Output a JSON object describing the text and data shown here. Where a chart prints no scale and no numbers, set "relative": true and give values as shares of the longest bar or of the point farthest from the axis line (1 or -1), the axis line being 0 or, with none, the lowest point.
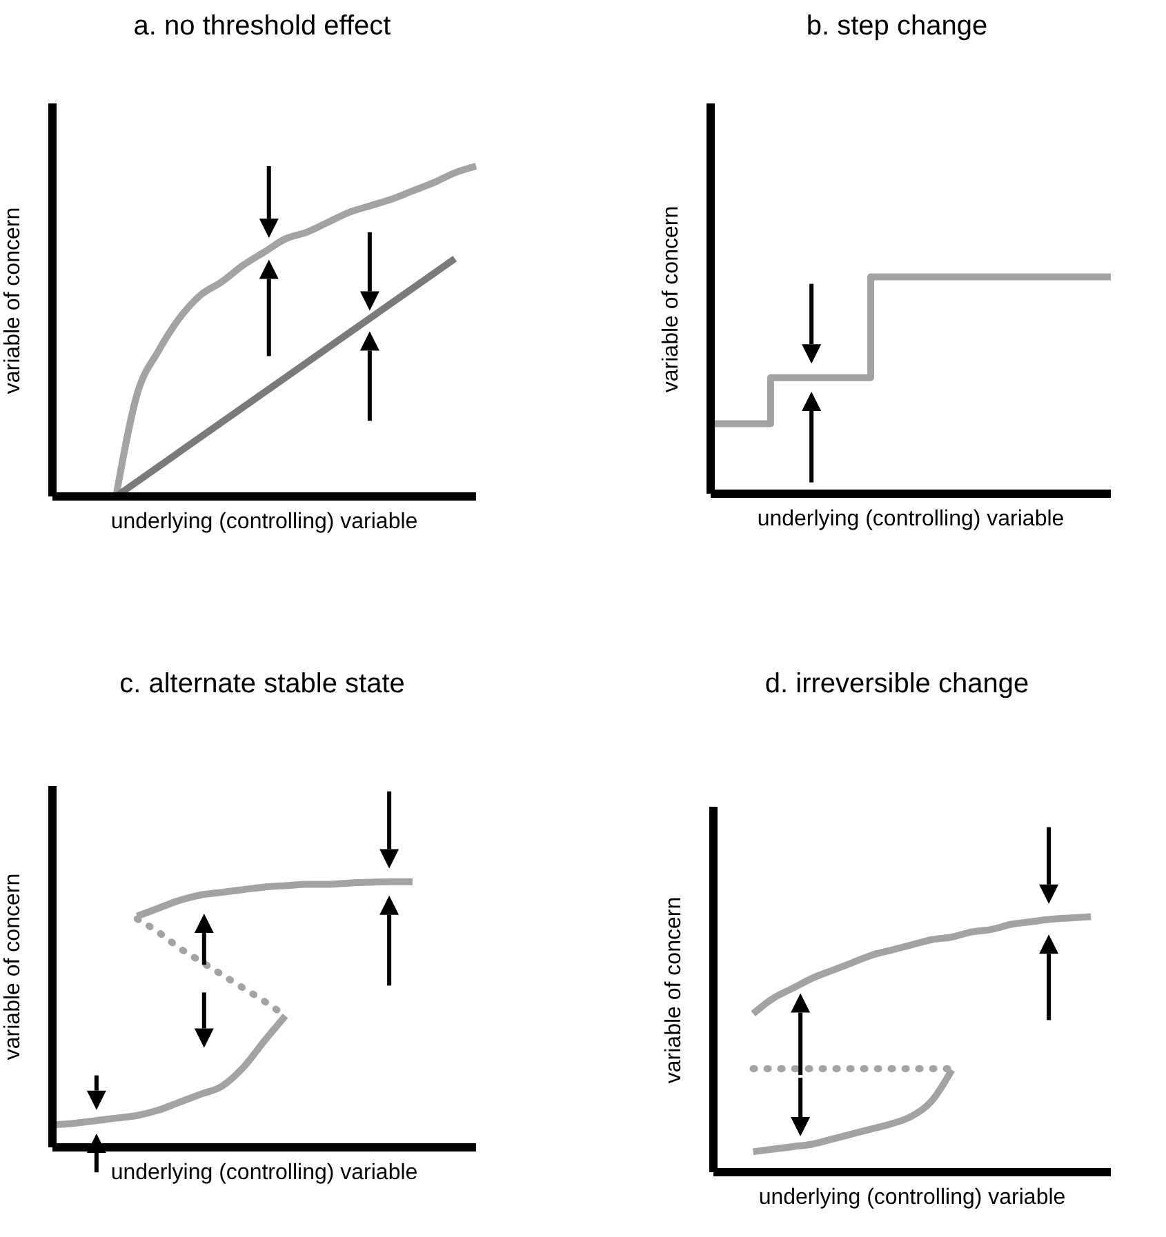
{
  "chart_data": [
    {
      "type": "line",
      "title": "a. no threshold effect",
      "xlabel": "underlying (controlling) variable",
      "ylabel": "variable of concern",
      "relative": true,
      "categories": [
        null,
        null,
        null,
        null,
        null,
        null,
        null,
        null,
        null,
        null,
        null,
        null,
        null,
        null,
        null,
        null,
        null,
        null,
        null,
        null,
        null
      ],
      "series": [
        {
          "color": "#a3a3a3",
          "values": [
            null,
            null,
            null,
            0,
            0.31,
            0.44,
            0.54,
            0.61,
            0.65,
            0.7,
            0.74,
            0.78,
            0.8,
            0.83,
            0.86,
            0.88,
            0.9,
            0.925,
            0.95,
            0.98,
            1
          ]
        },
        {
          "color": "#7a7a7a",
          "values": [
            null,
            null,
            null,
            0,
            null,
            null,
            null,
            null,
            null,
            null,
            null,
            null,
            null,
            null,
            null,
            null,
            null,
            null,
            null,
            0.72,
            null
          ]
        }
      ]
    },
    {
      "type": "step",
      "title": "b. step change",
      "xlabel": "underlying (controlling) variable",
      "ylabel": "variable of concern",
      "relative": true,
      "categories": [
        null,
        null,
        null,
        null,
        null,
        null,
        null,
        null,
        null,
        null,
        null,
        null,
        null,
        null,
        null,
        null,
        null,
        null,
        null,
        null,
        null
      ],
      "series": [
        {
          "color": "#a3a3a3",
          "values": [
            0.323,
            null,
            null,
            0.535,
            null,
            null,
            null,
            null,
            1,
            null,
            null,
            null,
            null,
            null,
            null,
            null,
            null,
            null,
            null,
            null,
            1
          ]
        }
      ]
    },
    {
      "type": "line",
      "title": "c. alternate stable state",
      "xlabel": "underlying (controlling) variable",
      "ylabel": "variable of concern",
      "relative": true,
      "categories": [
        null,
        null,
        null,
        null,
        null,
        null,
        null,
        null,
        null,
        null,
        null,
        null,
        null,
        null,
        null,
        null,
        null,
        null,
        null,
        null,
        null
      ],
      "series": [
        {
          "color": "#a3a3a3",
          "values": [
            0.085,
            0.09,
            0.1,
            0.11,
            0.12,
            0.14,
            0.17,
            0.2,
            0.23,
            0.3,
            0.4,
            0.495,
            null,
            null,
            null,
            null,
            null,
            null,
            null,
            null,
            null
          ]
        },
        {
          "color": "#a3a3a3",
          "values": [
            null,
            null,
            null,
            null,
            0.87,
            0.9,
            0.93,
            0.95,
            0.96,
            0.97,
            0.98,
            0.985,
            0.99,
            0.99,
            0.995,
            0.998,
            1,
            1,
            null,
            null,
            null
          ]
        },
        {
          "color": "#a3a3a3",
          "line_style": "dotted",
          "values": [
            null,
            null,
            null,
            null,
            0.86,
            0.81,
            0.75,
            0.7,
            0.65,
            0.6,
            0.55,
            0.495,
            null,
            null,
            null,
            null,
            null,
            null,
            null,
            null,
            null
          ]
        }
      ]
    },
    {
      "type": "line",
      "title": "d. irreversible change",
      "xlabel": "underlying (controlling) variable",
      "ylabel": "variable of concern",
      "relative": true,
      "categories": [
        null,
        null,
        null,
        null,
        null,
        null,
        null,
        null,
        null,
        null,
        null,
        null,
        null,
        null,
        null,
        null,
        null,
        null,
        null,
        null,
        null
      ],
      "series": [
        {
          "color": "#a3a3a3",
          "values": [
            null,
            null,
            0.62,
            0.68,
            0.72,
            0.76,
            0.79,
            0.82,
            0.85,
            0.87,
            0.89,
            0.91,
            0.92,
            0.94,
            0.95,
            0.97,
            0.98,
            0.99,
            0.995,
            1,
            null
          ]
        },
        {
          "color": "#a3a3a3",
          "values": [
            null,
            null,
            0.08,
            0.09,
            0.1,
            0.11,
            0.13,
            0.15,
            0.17,
            0.19,
            0.22,
            0.28,
            0.4,
            null,
            null,
            null,
            null,
            null,
            null,
            null,
            null
          ]
        },
        {
          "color": "#a3a3a3",
          "line_style": "dotted",
          "values": [
            null,
            null,
            0.405,
            null,
            null,
            null,
            null,
            null,
            null,
            null,
            null,
            null,
            0.405,
            null,
            null,
            null,
            null,
            null,
            null,
            null,
            null
          ]
        }
      ]
    }
  ]
}
